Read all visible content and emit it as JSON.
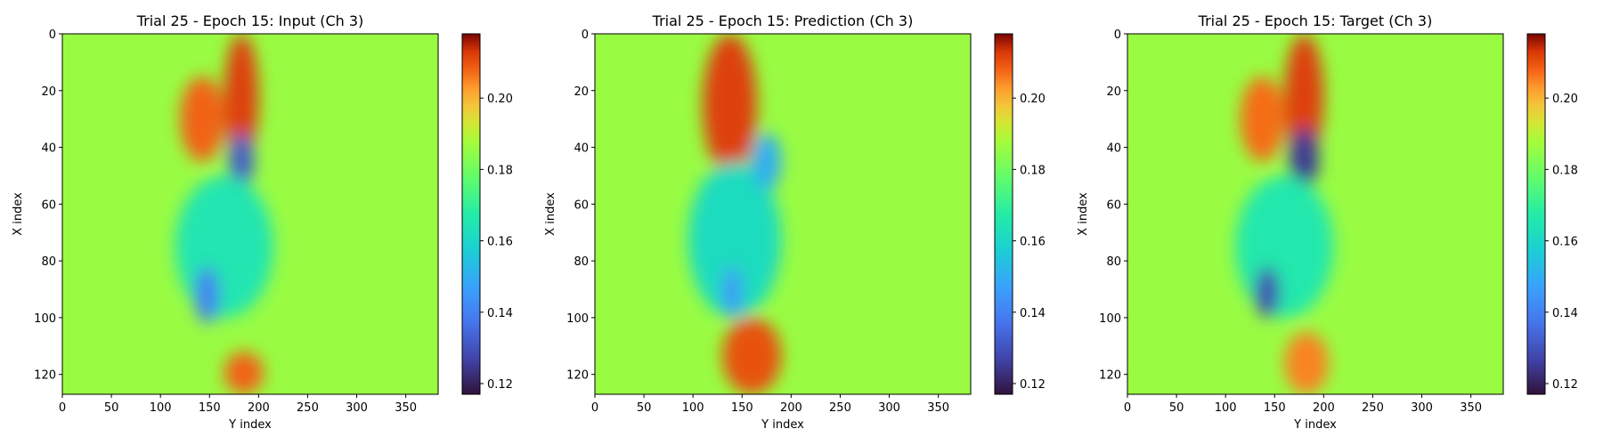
{
  "chart_data": [
    {
      "type": "heatmap",
      "title": "Trial 25 - Epoch 15: Input (Ch 3)",
      "xlabel": "Y index",
      "ylabel": "X index",
      "xlim": [
        0,
        383
      ],
      "ylim": [
        127,
        0
      ],
      "xticks": [
        "0",
        "50",
        "100",
        "150",
        "200",
        "250",
        "300",
        "350"
      ],
      "yticks": [
        "0",
        "20",
        "40",
        "60",
        "80",
        "100",
        "120"
      ],
      "colorbar": {
        "range": [
          0.117,
          0.218
        ],
        "ticks": [
          "0.12",
          "0.14",
          "0.16",
          "0.18",
          "0.20"
        ],
        "colormap": "turbo"
      },
      "background_value": 0.186,
      "features": [
        {
          "label": "high band",
          "x": [
            165,
            200
          ],
          "y": [
            0,
            45
          ],
          "value": 0.212
        },
        {
          "label": "high streak",
          "x": [
            120,
            165
          ],
          "y": [
            15,
            45
          ],
          "value": 0.208
        },
        {
          "label": "low spot",
          "x": [
            170,
            195
          ],
          "y": [
            35,
            55
          ],
          "value": 0.132
        },
        {
          "label": "mid region",
          "x": [
            115,
            215
          ],
          "y": [
            50,
            100
          ],
          "value": 0.165
        },
        {
          "label": "low spot",
          "x": [
            135,
            160
          ],
          "y": [
            82,
            102
          ],
          "value": 0.14
        },
        {
          "label": "high spot",
          "x": [
            165,
            205
          ],
          "y": [
            112,
            127
          ],
          "value": 0.208
        }
      ]
    },
    {
      "type": "heatmap",
      "title": "Trial 25 - Epoch 15: Prediction (Ch 3)",
      "xlabel": "Y index",
      "ylabel": "X index",
      "xlim": [
        0,
        383
      ],
      "ylim": [
        127,
        0
      ],
      "xticks": [
        "0",
        "50",
        "100",
        "150",
        "200",
        "250",
        "300",
        "350"
      ],
      "yticks": [
        "0",
        "20",
        "40",
        "60",
        "80",
        "100",
        "120"
      ],
      "colorbar": {
        "range": [
          0.117,
          0.218
        ],
        "ticks": [
          "0.12",
          "0.14",
          "0.16",
          "0.18",
          "0.20"
        ],
        "colormap": "turbo"
      },
      "background_value": 0.186,
      "features": [
        {
          "label": "high band",
          "x": [
            110,
            165
          ],
          "y": [
            0,
            50
          ],
          "value": 0.212
        },
        {
          "label": "high band",
          "x": [
            130,
            190
          ],
          "y": [
            100,
            127
          ],
          "value": 0.21
        },
        {
          "label": "mid region",
          "x": [
            95,
            190
          ],
          "y": [
            45,
            100
          ],
          "value": 0.162
        },
        {
          "label": "low spot",
          "x": [
            160,
            190
          ],
          "y": [
            35,
            55
          ],
          "value": 0.15
        },
        {
          "label": "low spot",
          "x": [
            130,
            150
          ],
          "y": [
            82,
            100
          ],
          "value": 0.145
        }
      ]
    },
    {
      "type": "heatmap",
      "title": "Trial 25 - Epoch 15: Target (Ch 3)",
      "xlabel": "Y index",
      "ylabel": "X index",
      "xlim": [
        0,
        383
      ],
      "ylim": [
        127,
        0
      ],
      "xticks": [
        "0",
        "50",
        "100",
        "150",
        "200",
        "250",
        "300",
        "350"
      ],
      "yticks": [
        "0",
        "20",
        "40",
        "60",
        "80",
        "100",
        "120"
      ],
      "colorbar": {
        "range": [
          0.117,
          0.218
        ],
        "ticks": [
          "0.12",
          "0.14",
          "0.16",
          "0.18",
          "0.20"
        ],
        "colormap": "turbo"
      },
      "background_value": 0.186,
      "features": [
        {
          "label": "high band",
          "x": [
            160,
            200
          ],
          "y": [
            0,
            45
          ],
          "value": 0.212
        },
        {
          "label": "high streak",
          "x": [
            115,
            160
          ],
          "y": [
            15,
            45
          ],
          "value": 0.207
        },
        {
          "label": "low spot",
          "x": [
            165,
            195
          ],
          "y": [
            33,
            55
          ],
          "value": 0.125
        },
        {
          "label": "mid region",
          "x": [
            110,
            210
          ],
          "y": [
            50,
            100
          ],
          "value": 0.166
        },
        {
          "label": "low spot",
          "x": [
            130,
            155
          ],
          "y": [
            82,
            100
          ],
          "value": 0.128
        },
        {
          "label": "high spot",
          "x": [
            160,
            205
          ],
          "y": [
            105,
            127
          ],
          "value": 0.205
        }
      ]
    }
  ]
}
